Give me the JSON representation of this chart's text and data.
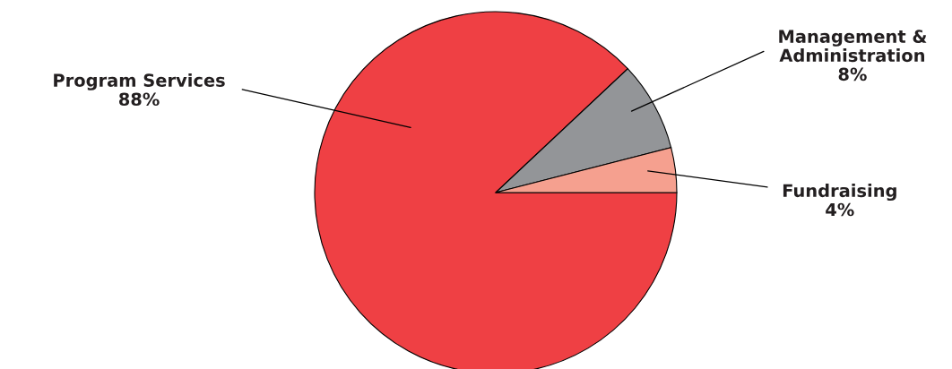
{
  "chart_data": {
    "type": "pie",
    "categories": [
      "Program Services",
      "Management & Administration",
      "Fundraising"
    ],
    "values": [
      88,
      8,
      4
    ],
    "colors": [
      "#ef4044",
      "#939598",
      "#f5a08f"
    ],
    "value_labels": [
      "88%",
      "8%",
      "4%"
    ],
    "legend": false
  }
}
